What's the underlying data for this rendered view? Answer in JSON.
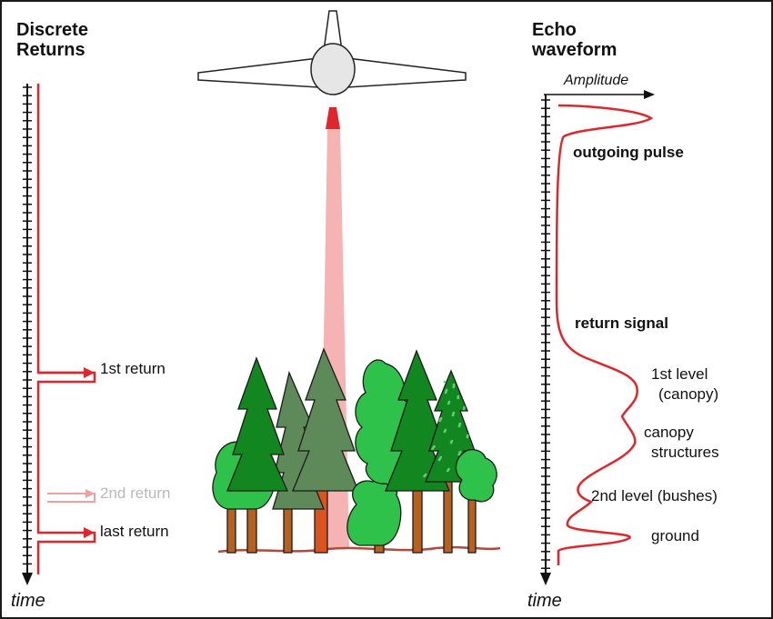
{
  "left_panel": {
    "title_line1": "Discrete",
    "title_line2": "Returns",
    "axis_label": "time",
    "returns": [
      {
        "label": "1st return",
        "color": "#e0262a"
      },
      {
        "label": "2nd return",
        "color": "#f0a0a0"
      },
      {
        "label": "last return",
        "color": "#e0262a"
      }
    ]
  },
  "right_panel": {
    "title_line1": "Echo",
    "title_line2": "waveform",
    "amplitude_label": "Amplitude",
    "axis_label": "time",
    "outgoing_pulse": "outgoing pulse",
    "return_signal": "return signal",
    "level1_line1": "1st level",
    "level1_line2": "(canopy)",
    "canopy_line1": "canopy",
    "canopy_line2": "structures",
    "level2": "2nd level (bushes)",
    "ground": "ground"
  },
  "colors": {
    "pulse_red": "#e0262a",
    "beam_pink": "#f6b3b3",
    "tree_dark": "#12871f",
    "tree_light": "#2fc24a",
    "tree_gray": "#5e8a5a",
    "trunk": "#b8601d"
  }
}
